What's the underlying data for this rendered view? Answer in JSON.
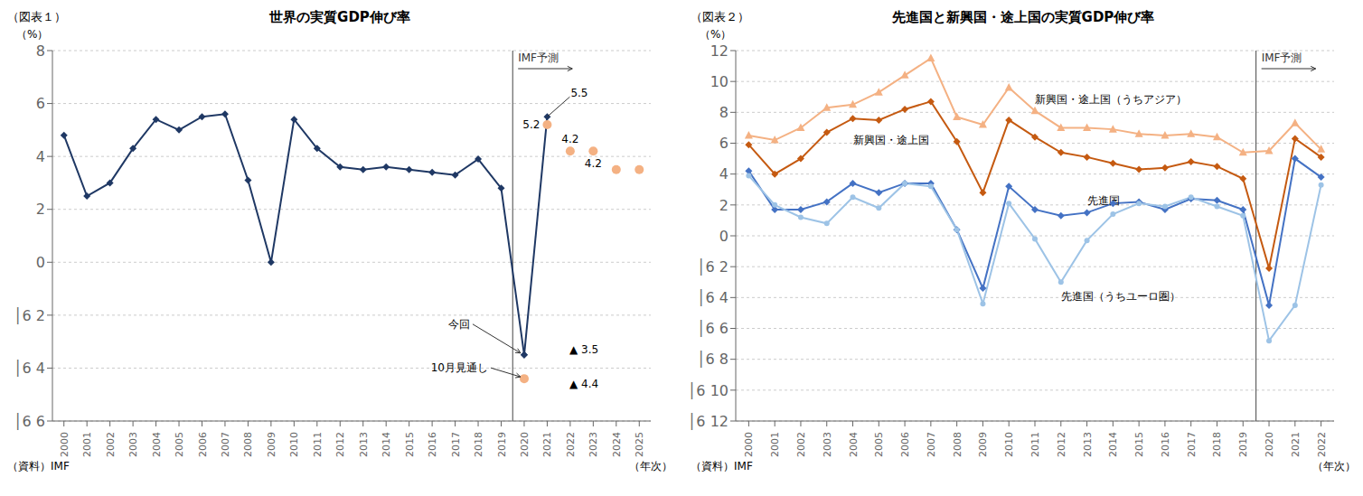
{
  "chart_data": [
    {
      "type": "line",
      "title": "世界の実質GDP伸び率",
      "subtitle": "（図表１）",
      "y_label": "（%）",
      "x_label": "（年次）",
      "source": "（資料）IMF",
      "xlim": [
        1999.5,
        2025.5
      ],
      "xticks": [
        2000,
        2001,
        2002,
        2003,
        2004,
        2005,
        2006,
        2007,
        2008,
        2009,
        2010,
        2011,
        2012,
        2013,
        2014,
        2015,
        2016,
        2017,
        2018,
        2019,
        2020,
        2021,
        2022,
        2023,
        2024,
        2025
      ],
      "ylim": [
        -6,
        8
      ],
      "yticks": [
        8,
        6,
        4,
        2,
        0,
        {
          "value": -2,
          "label": "│6 2"
        },
        {
          "value": -4,
          "label": "│6 4"
        },
        {
          "value": -6,
          "label": "│6 6"
        }
      ],
      "grid": "y",
      "vline": {
        "x": 2019.5,
        "label": "IMF予測"
      },
      "series": [
        {
          "type": "line",
          "color": "#1F3864",
          "marker": "diamond",
          "x": [
            2000,
            2001,
            2002,
            2003,
            2004,
            2005,
            2006,
            2007,
            2008,
            2009,
            2010,
            2011,
            2012,
            2013,
            2014,
            2015,
            2016,
            2017,
            2018,
            2019,
            2020
          ],
          "values": [
            4.8,
            2.5,
            3.0,
            4.3,
            5.4,
            5.0,
            5.5,
            5.6,
            3.1,
            0.0,
            5.4,
            4.3,
            3.6,
            3.5,
            3.6,
            3.5,
            3.4,
            3.3,
            3.9,
            2.8,
            -3.5
          ]
        },
        {
          "type": "line",
          "color": "#1F3864",
          "marker": "diamond",
          "x": [
            2020,
            2021
          ],
          "values": [
            -3.5,
            5.5
          ]
        },
        {
          "type": "scatter",
          "color": "#F4B183",
          "marker": "circle",
          "x": [
            2021,
            2022,
            2023,
            2024,
            2025
          ],
          "values": [
            5.2,
            4.2,
            4.2,
            3.5,
            3.5
          ]
        },
        {
          "type": "scatter",
          "color": "#F4B183",
          "marker": "circle",
          "x": [
            2020
          ],
          "values": [
            -4.4
          ]
        }
      ],
      "annotations": [
        {
          "text": "5.5",
          "x": 2021,
          "y": 5.5
        },
        {
          "text": "5.2",
          "x": 2021,
          "y": 5.2
        },
        {
          "text": "4.2",
          "x": 2022,
          "y": 4.2
        },
        {
          "text": "4.2",
          "x": 2023,
          "y": 4.2
        },
        {
          "text": "今回",
          "x": 2020,
          "y": -3.5
        },
        {
          "text": "10月見通し",
          "x": 2020,
          "y": -4.4
        },
        {
          "text": "▲ 3.5",
          "x": 2020,
          "y": -3.5
        },
        {
          "text": "▲ 4.4",
          "x": 2020,
          "y": -4.4
        }
      ]
    },
    {
      "type": "line",
      "title": "先進国と新興国・途上国の実質GDP伸び率",
      "subtitle": "（図表２）",
      "y_label": "（%）",
      "x_label": "（年次）",
      "source": "（資料）IMF",
      "x": [
        2000,
        2001,
        2002,
        2003,
        2004,
        2005,
        2006,
        2007,
        2008,
        2009,
        2010,
        2011,
        2012,
        2013,
        2014,
        2015,
        2016,
        2017,
        2018,
        2019,
        2020,
        2021,
        2022
      ],
      "xlim": [
        1999.5,
        2022.5
      ],
      "xticks": [
        2000,
        2001,
        2002,
        2003,
        2004,
        2005,
        2006,
        2007,
        2008,
        2009,
        2010,
        2011,
        2012,
        2013,
        2014,
        2015,
        2016,
        2017,
        2018,
        2019,
        2020,
        2021,
        2022
      ],
      "ylim": [
        -12,
        12
      ],
      "yticks": [
        12,
        10,
        8,
        6,
        4,
        2,
        0,
        {
          "value": -2,
          "label": "│6 2"
        },
        {
          "value": -4,
          "label": "│6 4"
        },
        {
          "value": -6,
          "label": "│6 6"
        },
        {
          "value": -8,
          "label": "│6 8"
        },
        {
          "value": -10,
          "label": "│6 10"
        },
        {
          "value": -12,
          "label": "│6 12"
        }
      ],
      "grid": "y",
      "vline": {
        "x": 2019.5,
        "label": "IMF予測"
      },
      "series": [
        {
          "name": "新興国・途上国（うちアジア）",
          "color": "#F4B183",
          "marker": "triangle",
          "values": [
            6.5,
            6.2,
            7.0,
            8.3,
            8.5,
            9.3,
            10.4,
            11.5,
            7.7,
            7.2,
            9.6,
            8.1,
            7.0,
            7.0,
            6.9,
            6.6,
            6.5,
            6.6,
            6.4,
            5.4,
            5.5,
            7.3,
            5.6
          ]
        },
        {
          "name": "新興国・途上国",
          "color": "#C55A11",
          "marker": "diamond",
          "values": [
            5.9,
            4.0,
            5.0,
            6.7,
            7.6,
            7.5,
            8.2,
            8.7,
            6.1,
            2.8,
            7.5,
            6.4,
            5.4,
            5.1,
            4.7,
            4.3,
            4.4,
            4.8,
            4.5,
            3.7,
            -2.1,
            6.3,
            5.1
          ]
        },
        {
          "name": "先進国",
          "color": "#4472C4",
          "marker": "diamond",
          "values": [
            4.2,
            1.7,
            1.7,
            2.2,
            3.4,
            2.8,
            3.4,
            3.4,
            0.4,
            -3.4,
            3.2,
            1.7,
            1.3,
            1.5,
            2.1,
            2.2,
            1.7,
            2.4,
            2.3,
            1.7,
            -4.5,
            5.0,
            3.8
          ]
        },
        {
          "name": "先進国（うちユーロ圏）",
          "color": "#9DC3E6",
          "marker": "circle",
          "values": [
            3.9,
            2.0,
            1.2,
            0.8,
            2.5,
            1.8,
            3.4,
            3.2,
            0.4,
            -4.4,
            2.1,
            -0.2,
            -3.0,
            -0.3,
            1.4,
            2.1,
            1.9,
            2.5,
            1.9,
            1.3,
            -6.8,
            -4.5,
            3.3
          ]
        }
      ]
    }
  ]
}
